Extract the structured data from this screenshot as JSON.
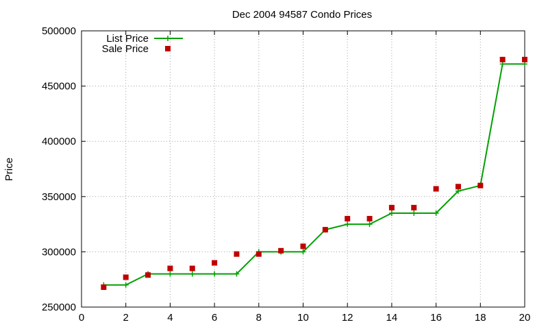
{
  "chart_data": {
    "type": "line",
    "title": "Dec 2004 94587 Condo Prices",
    "xlabel": "",
    "ylabel": "Price",
    "xlim": [
      0,
      20
    ],
    "ylim": [
      250000,
      500000
    ],
    "xticks": [
      0,
      2,
      4,
      6,
      8,
      10,
      12,
      14,
      16,
      18,
      20
    ],
    "yticks": [
      250000,
      300000,
      350000,
      400000,
      450000,
      500000
    ],
    "grid": true,
    "legend_position": "top-left",
    "series": [
      {
        "name": "List Price",
        "style": "line-with-plus-markers",
        "color": "#00a000",
        "x": [
          1,
          2,
          3,
          4,
          5,
          6,
          7,
          8,
          9,
          10,
          11,
          12,
          13,
          14,
          15,
          16,
          17,
          18,
          19,
          20
        ],
        "y": [
          270000,
          270000,
          280000,
          280000,
          280000,
          280000,
          280000,
          300000,
          300000,
          300000,
          320000,
          325000,
          325000,
          335000,
          335000,
          335000,
          355000,
          360000,
          470000,
          470000
        ]
      },
      {
        "name": "Sale Price",
        "style": "square-markers",
        "color": "#c00000",
        "x": [
          1,
          2,
          3,
          4,
          5,
          6,
          7,
          8,
          9,
          10,
          11,
          12,
          13,
          14,
          15,
          16,
          17,
          18,
          19,
          20
        ],
        "y": [
          268000,
          277000,
          279000,
          285000,
          285000,
          290000,
          298000,
          298000,
          301000,
          305000,
          320000,
          330000,
          330000,
          340000,
          340000,
          357000,
          359000,
          360000,
          474000,
          474000
        ]
      }
    ]
  }
}
